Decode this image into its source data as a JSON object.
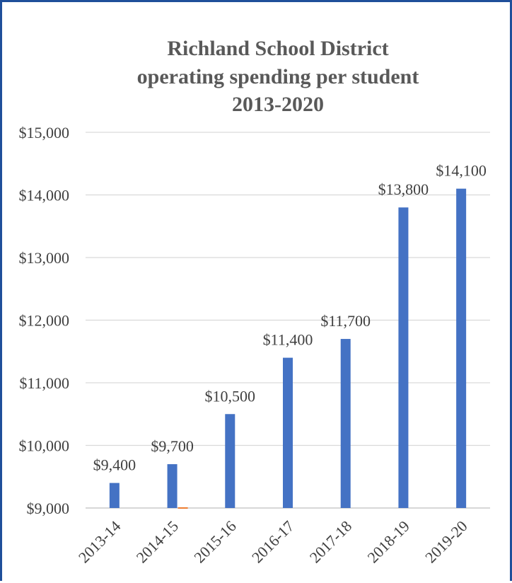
{
  "chart_data": {
    "type": "bar",
    "title": [
      "Richland School District",
      "operating spending per student",
      "2013-2020"
    ],
    "xlabel": "",
    "ylabel": "",
    "categories": [
      "2013-14",
      "2014-15",
      "2015-16",
      "2016-17",
      "2017-18",
      "2018-19",
      "2019-20"
    ],
    "series": [
      {
        "values": [
          9400,
          9700,
          10500,
          11400,
          11700,
          13800,
          14100
        ],
        "data_labels": [
          "$9,400",
          "$9,700",
          "$10,500",
          "$11,400",
          "$11,700",
          "$13,800",
          "$14,100"
        ],
        "color": "#4472c4"
      },
      {
        "values": [
          null,
          9000,
          null,
          null,
          null,
          null,
          null
        ],
        "color": "#ed7d31"
      }
    ],
    "ylim": [
      9000,
      15000
    ],
    "yticks": [
      9000,
      10000,
      11000,
      12000,
      13000,
      14000,
      15000
    ],
    "ytick_labels": [
      "$9,000",
      "$10,000",
      "$11,000",
      "$12,000",
      "$13,000",
      "$14,000",
      "$15,000"
    ],
    "grid": true,
    "legend": "none"
  },
  "colors": {
    "frame_border": "#1f4f9a",
    "bar": "#4472c4",
    "secondary_bar": "#ed7d31",
    "gridline": "#d9d9d9",
    "title_text": "#595959",
    "label_text": "#404040"
  }
}
